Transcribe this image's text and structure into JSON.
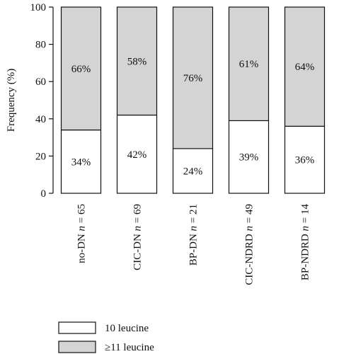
{
  "chart_data": {
    "type": "bar",
    "stacked": true,
    "normalized": true,
    "ylabel": "Frequency (%)",
    "ylim": [
      0,
      100
    ],
    "yticks": [
      0,
      20,
      40,
      60,
      80,
      100
    ],
    "categories": [
      {
        "group": "no-DN",
        "n": "n",
        "eq": " = 65"
      },
      {
        "group": "CIC-DN",
        "n": "n",
        "eq": " = 69"
      },
      {
        "group": "BP-DN",
        "n": "n",
        "eq": " = 21"
      },
      {
        "group": "CIC-NDRD",
        "n": "n",
        "eq": " = 49"
      },
      {
        "group": "BP-NDRD",
        "n": "n",
        "eq": " = 14"
      }
    ],
    "series": [
      {
        "name": "10 leucine",
        "values": [
          34,
          42,
          24,
          39,
          36
        ],
        "labels": [
          "34%",
          "42%",
          "24%",
          "39%",
          "36%"
        ],
        "color": "#ffffff"
      },
      {
        "name": "≥11 leucine",
        "values": [
          66,
          58,
          76,
          61,
          64
        ],
        "labels": [
          "66%",
          "58%",
          "76%",
          "61%",
          "64%"
        ],
        "color": "#d4d4d4"
      }
    ],
    "legend": "bottom-left",
    "grid": false
  }
}
